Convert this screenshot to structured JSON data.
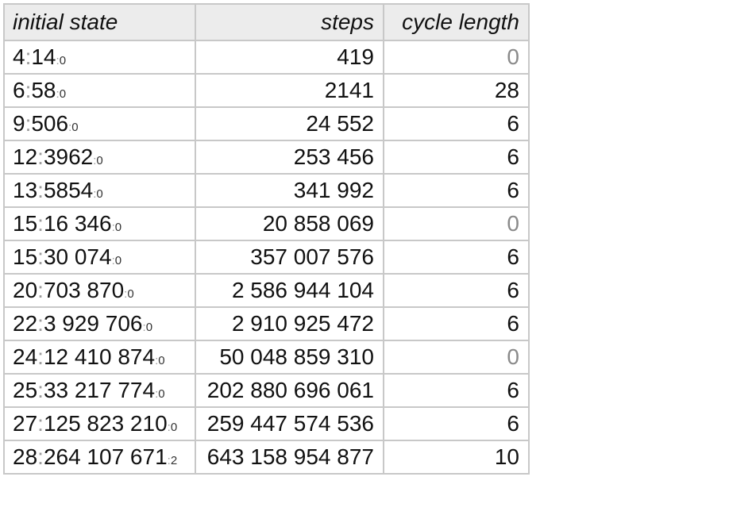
{
  "headers": [
    "initial state",
    "steps",
    "cycle length"
  ],
  "colors": {
    "header_bg": "#ececec",
    "border": "#c8c8c8",
    "zero_value": "#8a8a8a",
    "separator": "#9a9a9a"
  },
  "rows": [
    {
      "n": "4",
      "value": "14",
      "suffix": "0",
      "steps": "419",
      "cycle": "0"
    },
    {
      "n": "6",
      "value": "58",
      "suffix": "0",
      "steps": "2141",
      "cycle": "28"
    },
    {
      "n": "9",
      "value": "506",
      "suffix": "0",
      "steps": "24 552",
      "cycle": "6"
    },
    {
      "n": "12",
      "value": "3962",
      "suffix": "0",
      "steps": "253 456",
      "cycle": "6"
    },
    {
      "n": "13",
      "value": "5854",
      "suffix": "0",
      "steps": "341 992",
      "cycle": "6"
    },
    {
      "n": "15",
      "value": "16 346",
      "suffix": "0",
      "steps": "20 858 069",
      "cycle": "0"
    },
    {
      "n": "15",
      "value": "30 074",
      "suffix": "0",
      "steps": "357 007 576",
      "cycle": "6"
    },
    {
      "n": "20",
      "value": "703 870",
      "suffix": "0",
      "steps": "2 586 944 104",
      "cycle": "6"
    },
    {
      "n": "22",
      "value": "3 929 706",
      "suffix": "0",
      "steps": "2 910 925 472",
      "cycle": "6"
    },
    {
      "n": "24",
      "value": "12 410 874",
      "suffix": "0",
      "steps": "50 048 859 310",
      "cycle": "0"
    },
    {
      "n": "25",
      "value": "33 217 774",
      "suffix": "0",
      "steps": "202 880 696 061",
      "cycle": "6"
    },
    {
      "n": "27",
      "value": "125 823 210",
      "suffix": "0",
      "steps": "259 447 574 536",
      "cycle": "6"
    },
    {
      "n": "28",
      "value": "264 107 671",
      "suffix": "2",
      "steps": "643 158 954 877",
      "cycle": "10"
    }
  ]
}
